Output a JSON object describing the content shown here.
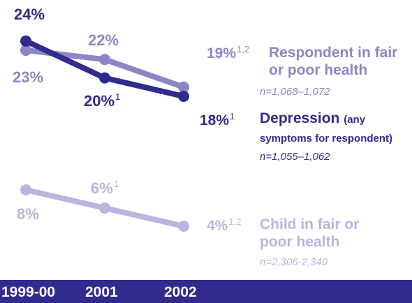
{
  "chart_data": {
    "type": "line",
    "categories": [
      "1999-00",
      "2001",
      "2002"
    ],
    "series": [
      {
        "name": "Respondent in fair or poor health",
        "n": "n=1,068–1,072",
        "values": [
          23,
          22,
          19
        ],
        "value_labels": [
          "23%",
          "22%",
          "19%"
        ],
        "footnotes": [
          "",
          "",
          "1,2"
        ],
        "color": "#8c87c4"
      },
      {
        "name": "Depression",
        "name_suffix": "(any symptoms for respondent)",
        "n": "n=1,055–1,062",
        "values": [
          24,
          20,
          18
        ],
        "value_labels": [
          "24%",
          "20%",
          "18%"
        ],
        "footnotes": [
          "",
          "1",
          "1"
        ],
        "color": "#302b8c"
      },
      {
        "name": "Child in fair or poor health",
        "n": "n=2,306-2,340",
        "values": [
          8,
          6,
          4
        ],
        "value_labels": [
          "8%",
          "6%",
          "4%"
        ],
        "footnotes": [
          "",
          "1",
          "1,2"
        ],
        "color": "#b9b6dd"
      }
    ],
    "legend_placement": "right",
    "grid": false
  },
  "colors": {
    "axis_bar": "#302b8c",
    "axis_text": "#ffffff"
  }
}
